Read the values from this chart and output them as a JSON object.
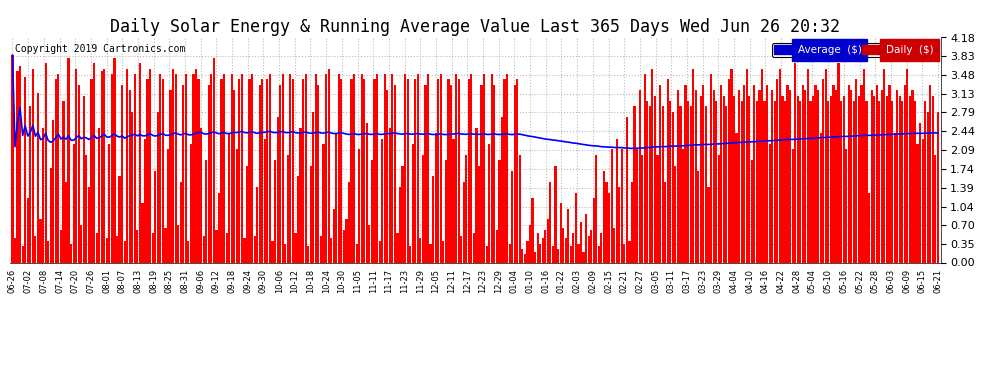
{
  "title": "Daily Solar Energy & Running Average Value Last 365 Days Wed Jun 26 20:32",
  "copyright": "Copyright 2019 Cartronics.com",
  "legend_avg": "Average  ($)",
  "legend_daily": "Daily  ($)",
  "bar_color": "#ff0000",
  "avg_line_color": "#0000ff",
  "bg_color": "#ffffff",
  "plot_bg_color": "#ffffff",
  "grid_color": "#bbbbbb",
  "ymin": 0.0,
  "ymax": 4.18,
  "yticks": [
    0.0,
    0.35,
    0.7,
    1.04,
    1.39,
    1.74,
    2.09,
    2.44,
    2.79,
    3.13,
    3.48,
    3.83,
    4.18
  ],
  "title_fontsize": 12,
  "copyright_fontsize": 7,
  "daily_values": [
    3.85,
    0.45,
    3.55,
    3.65,
    0.3,
    3.45,
    1.2,
    2.9,
    3.6,
    0.5,
    3.15,
    0.8,
    2.5,
    3.7,
    0.4,
    1.75,
    2.65,
    3.4,
    3.5,
    0.6,
    3.0,
    1.5,
    3.8,
    0.35,
    2.2,
    3.6,
    3.3,
    0.7,
    3.1,
    2.0,
    1.4,
    3.4,
    3.7,
    0.55,
    2.5,
    3.55,
    3.6,
    0.45,
    2.2,
    3.5,
    3.8,
    0.5,
    1.6,
    3.3,
    0.4,
    3.6,
    3.2,
    2.8,
    3.5,
    0.6,
    3.7,
    1.1,
    2.3,
    3.4,
    3.6,
    0.55,
    1.7,
    2.8,
    3.5,
    3.4,
    0.65,
    2.1,
    3.2,
    3.6,
    3.5,
    0.7,
    1.5,
    3.3,
    3.5,
    0.4,
    2.2,
    3.5,
    3.6,
    3.4,
    2.5,
    0.5,
    1.9,
    3.3,
    3.5,
    3.8,
    0.6,
    1.3,
    3.4,
    3.5,
    0.55,
    2.4,
    3.5,
    3.2,
    2.1,
    3.4,
    3.5,
    0.45,
    1.8,
    3.4,
    3.5,
    0.5,
    1.4,
    3.3,
    3.4,
    2.3,
    3.4,
    3.5,
    0.4,
    1.9,
    2.7,
    3.3,
    3.5,
    0.35,
    2.0,
    3.5,
    3.4,
    0.55,
    1.6,
    2.5,
    3.4,
    3.5,
    0.3,
    1.8,
    2.8,
    3.5,
    3.3,
    0.5,
    2.2,
    3.5,
    3.6,
    0.45,
    1.0,
    2.4,
    3.5,
    3.4,
    0.6,
    0.8,
    1.5,
    3.4,
    3.5,
    0.35,
    2.1,
    3.5,
    3.4,
    2.6,
    0.7,
    1.9,
    3.4,
    3.5,
    0.4,
    2.3,
    3.5,
    3.2,
    2.5,
    3.5,
    3.3,
    0.55,
    1.4,
    1.8,
    3.5,
    3.4,
    0.3,
    2.2,
    3.4,
    3.5,
    0.45,
    2.0,
    3.3,
    3.5,
    0.35,
    1.6,
    2.4,
    3.4,
    3.5,
    0.4,
    1.9,
    3.4,
    3.3,
    2.3,
    3.5,
    3.4,
    0.5,
    1.5,
    2.0,
    3.4,
    3.5,
    0.55,
    2.5,
    1.8,
    3.3,
    3.5,
    0.3,
    2.2,
    3.5,
    3.3,
    0.6,
    1.9,
    2.7,
    3.4,
    3.5,
    0.35,
    1.7,
    3.3,
    3.4,
    2.0,
    0.25,
    0.15,
    0.4,
    0.7,
    1.2,
    0.2,
    0.55,
    0.35,
    0.45,
    0.6,
    0.8,
    1.5,
    0.3,
    1.8,
    0.25,
    1.1,
    0.65,
    0.45,
    1.0,
    0.3,
    0.55,
    1.3,
    0.35,
    0.75,
    0.2,
    0.9,
    0.5,
    0.6,
    1.2,
    2.0,
    0.3,
    0.55,
    1.7,
    1.5,
    1.3,
    2.1,
    0.65,
    2.3,
    1.4,
    2.1,
    0.35,
    2.7,
    0.4,
    1.5,
    2.9,
    2.1,
    3.2,
    2.0,
    3.5,
    3.0,
    2.9,
    3.6,
    3.1,
    2.0,
    3.3,
    2.9,
    1.5,
    3.4,
    3.0,
    2.8,
    1.8,
    3.2,
    2.9,
    2.1,
    3.3,
    3.0,
    2.9,
    3.6,
    3.2,
    1.7,
    3.1,
    3.3,
    2.9,
    1.4,
    3.5,
    3.2,
    3.0,
    2.0,
    3.3,
    3.1,
    2.9,
    3.4,
    3.6,
    3.1,
    2.4,
    3.2,
    3.0,
    3.3,
    3.6,
    3.1,
    1.9,
    3.3,
    3.0,
    3.2,
    3.6,
    3.0,
    3.3,
    2.2,
    3.2,
    3.0,
    3.4,
    3.6,
    3.1,
    3.0,
    3.3,
    3.2,
    2.1,
    3.7,
    3.1,
    3.0,
    3.3,
    3.2,
    3.6,
    3.0,
    3.1,
    3.3,
    3.2,
    2.4,
    3.4,
    3.6,
    3.0,
    3.1,
    3.3,
    3.2,
    3.7,
    3.0,
    3.1,
    2.1,
    3.3,
    3.2,
    3.0,
    3.4,
    3.1,
    3.3,
    3.6,
    3.0,
    1.3,
    3.2,
    3.1,
    3.3,
    3.0,
    3.2,
    3.6,
    3.1,
    3.3,
    3.0,
    2.4,
    3.2,
    3.1,
    3.0,
    3.3,
    3.6,
    3.1,
    3.2,
    3.0,
    2.2,
    2.6,
    2.3,
    3.0,
    2.8,
    3.3,
    3.1,
    2.0,
    2.8
  ],
  "x_tick_labels": [
    "06-26",
    "07-02",
    "07-08",
    "07-14",
    "07-20",
    "07-26",
    "08-01",
    "08-07",
    "08-13",
    "08-19",
    "08-25",
    "08-31",
    "09-06",
    "09-12",
    "09-18",
    "09-24",
    "09-30",
    "10-06",
    "10-12",
    "10-18",
    "10-24",
    "10-30",
    "11-05",
    "11-11",
    "11-17",
    "11-23",
    "11-29",
    "12-05",
    "12-11",
    "12-17",
    "12-23",
    "12-29",
    "01-04",
    "01-10",
    "01-16",
    "01-22",
    "02-03",
    "02-09",
    "02-15",
    "02-21",
    "02-27",
    "03-05",
    "03-11",
    "03-17",
    "03-23",
    "03-29",
    "04-04",
    "04-10",
    "04-16",
    "04-22",
    "04-28",
    "05-04",
    "05-10",
    "05-16",
    "05-22",
    "05-28",
    "06-03",
    "06-09",
    "06-15",
    "06-21"
  ]
}
